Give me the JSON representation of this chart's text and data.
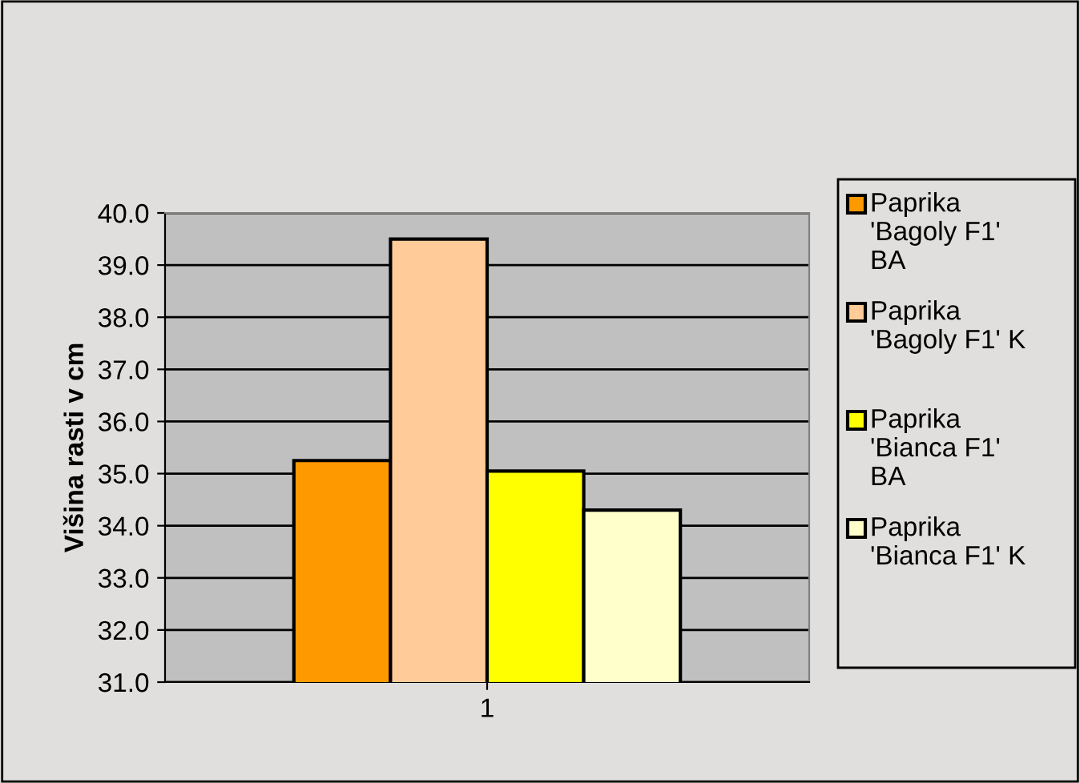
{
  "chart_data": {
    "type": "bar",
    "ylabel": "Višina rasti v cm",
    "categories": [
      "1"
    ],
    "series": [
      {
        "name": "Paprika\n'Bagoly F1'\nBA",
        "color": "#ff9900",
        "values": [
          35.25
        ]
      },
      {
        "name": "Paprika\n'Bagoly F1' K",
        "color": "#ffcc99",
        "values": [
          39.5
        ]
      },
      {
        "name": "Paprika\n'Bianca F1'\nBA",
        "color": "#ffff00",
        "values": [
          35.05
        ]
      },
      {
        "name": "Paprika\n'Bianca F1' K",
        "color": "#ffffcc",
        "values": [
          34.3
        ]
      }
    ],
    "ylim": [
      31,
      40
    ],
    "yticks": [
      {
        "value": 31,
        "label": "31.0"
      },
      {
        "value": 32,
        "label": "32.0"
      },
      {
        "value": 33,
        "label": "33.0"
      },
      {
        "value": 34,
        "label": "34.0"
      },
      {
        "value": 35,
        "label": "35.0"
      },
      {
        "value": 36,
        "label": "36.0"
      },
      {
        "value": 37,
        "label": "37.0"
      },
      {
        "value": 38,
        "label": "38.0"
      },
      {
        "value": 39,
        "label": "39.0"
      },
      {
        "value": 40,
        "label": "40.0"
      }
    ],
    "grid": "y",
    "legend": "right"
  }
}
